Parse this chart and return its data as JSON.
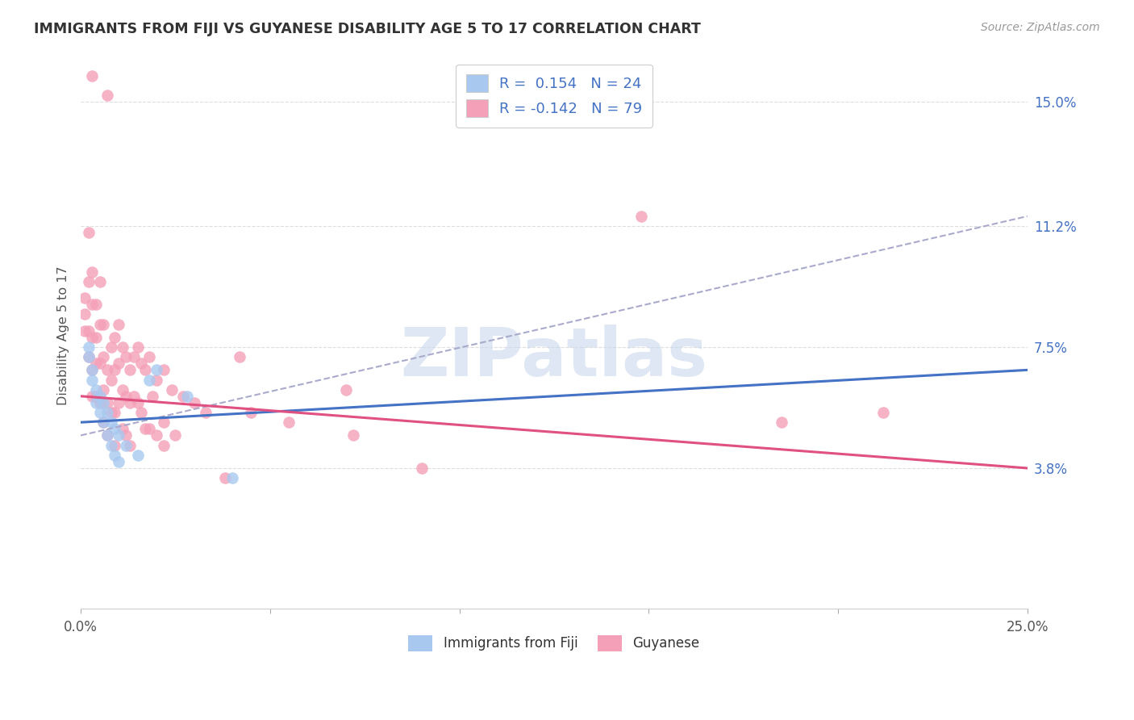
{
  "title": "IMMIGRANTS FROM FIJI VS GUYANESE DISABILITY AGE 5 TO 17 CORRELATION CHART",
  "source": "Source: ZipAtlas.com",
  "ylabel": "Disability Age 5 to 17",
  "xlim": [
    0.0,
    0.25
  ],
  "ylim": [
    -0.005,
    0.162
  ],
  "x_tick_positions": [
    0.0,
    0.05,
    0.1,
    0.15,
    0.2,
    0.25
  ],
  "x_tick_labels": [
    "0.0%",
    "",
    "",
    "",
    "",
    "25.0%"
  ],
  "y_ticks_right": [
    0.038,
    0.075,
    0.112,
    0.15
  ],
  "y_tick_labels_right": [
    "3.8%",
    "7.5%",
    "11.2%",
    "15.0%"
  ],
  "fiji_R": 0.154,
  "fiji_N": 24,
  "guyanese_R": -0.142,
  "guyanese_N": 79,
  "fiji_color": "#A8C8F0",
  "guyanese_color": "#F4A0B8",
  "fiji_line_color": "#4472C4",
  "guyanese_line_color": "#E05080",
  "dashed_line_color": "#AAAACC",
  "watermark": "ZIPatlas",
  "watermark_color": "#C8D8EC",
  "background_color": "#FFFFFF",
  "fiji_points": [
    [
      0.002,
      0.075
    ],
    [
      0.002,
      0.072
    ],
    [
      0.003,
      0.068
    ],
    [
      0.003,
      0.065
    ],
    [
      0.004,
      0.062
    ],
    [
      0.004,
      0.058
    ],
    [
      0.005,
      0.06
    ],
    [
      0.005,
      0.055
    ],
    [
      0.006,
      0.058
    ],
    [
      0.006,
      0.052
    ],
    [
      0.007,
      0.055
    ],
    [
      0.007,
      0.048
    ],
    [
      0.008,
      0.052
    ],
    [
      0.008,
      0.045
    ],
    [
      0.009,
      0.05
    ],
    [
      0.009,
      0.042
    ],
    [
      0.01,
      0.048
    ],
    [
      0.01,
      0.04
    ],
    [
      0.012,
      0.045
    ],
    [
      0.015,
      0.042
    ],
    [
      0.018,
      0.065
    ],
    [
      0.02,
      0.068
    ],
    [
      0.028,
      0.06
    ],
    [
      0.04,
      0.035
    ]
  ],
  "guyanese_points": [
    [
      0.001,
      0.09
    ],
    [
      0.001,
      0.085
    ],
    [
      0.001,
      0.08
    ],
    [
      0.002,
      0.11
    ],
    [
      0.002,
      0.095
    ],
    [
      0.002,
      0.08
    ],
    [
      0.002,
      0.072
    ],
    [
      0.003,
      0.098
    ],
    [
      0.003,
      0.088
    ],
    [
      0.003,
      0.078
    ],
    [
      0.003,
      0.068
    ],
    [
      0.003,
      0.06
    ],
    [
      0.004,
      0.088
    ],
    [
      0.004,
      0.078
    ],
    [
      0.004,
      0.07
    ],
    [
      0.004,
      0.06
    ],
    [
      0.005,
      0.095
    ],
    [
      0.005,
      0.082
    ],
    [
      0.005,
      0.07
    ],
    [
      0.005,
      0.058
    ],
    [
      0.006,
      0.082
    ],
    [
      0.006,
      0.072
    ],
    [
      0.006,
      0.062
    ],
    [
      0.006,
      0.052
    ],
    [
      0.007,
      0.152
    ],
    [
      0.007,
      0.068
    ],
    [
      0.007,
      0.058
    ],
    [
      0.007,
      0.048
    ],
    [
      0.008,
      0.075
    ],
    [
      0.008,
      0.065
    ],
    [
      0.008,
      0.055
    ],
    [
      0.009,
      0.078
    ],
    [
      0.009,
      0.068
    ],
    [
      0.009,
      0.055
    ],
    [
      0.009,
      0.045
    ],
    [
      0.01,
      0.082
    ],
    [
      0.01,
      0.07
    ],
    [
      0.01,
      0.058
    ],
    [
      0.011,
      0.075
    ],
    [
      0.011,
      0.062
    ],
    [
      0.011,
      0.05
    ],
    [
      0.012,
      0.072
    ],
    [
      0.012,
      0.06
    ],
    [
      0.012,
      0.048
    ],
    [
      0.013,
      0.068
    ],
    [
      0.013,
      0.058
    ],
    [
      0.013,
      0.045
    ],
    [
      0.014,
      0.072
    ],
    [
      0.014,
      0.06
    ],
    [
      0.015,
      0.075
    ],
    [
      0.015,
      0.058
    ],
    [
      0.016,
      0.07
    ],
    [
      0.016,
      0.055
    ],
    [
      0.017,
      0.068
    ],
    [
      0.017,
      0.05
    ],
    [
      0.018,
      0.072
    ],
    [
      0.018,
      0.05
    ],
    [
      0.019,
      0.06
    ],
    [
      0.02,
      0.065
    ],
    [
      0.02,
      0.048
    ],
    [
      0.022,
      0.052
    ],
    [
      0.022,
      0.068
    ],
    [
      0.022,
      0.045
    ],
    [
      0.024,
      0.062
    ],
    [
      0.025,
      0.048
    ],
    [
      0.027,
      0.06
    ],
    [
      0.03,
      0.058
    ],
    [
      0.033,
      0.055
    ],
    [
      0.038,
      0.035
    ],
    [
      0.042,
      0.072
    ],
    [
      0.045,
      0.055
    ],
    [
      0.055,
      0.052
    ],
    [
      0.07,
      0.062
    ],
    [
      0.072,
      0.048
    ],
    [
      0.09,
      0.038
    ],
    [
      0.148,
      0.115
    ],
    [
      0.185,
      0.052
    ],
    [
      0.212,
      0.055
    ],
    [
      0.003,
      0.158
    ]
  ],
  "legend_fiji_label": "R =  0.154   N = 24",
  "legend_guy_label": "R = -0.142   N = 79",
  "bottom_legend_fiji": "Immigrants from Fiji",
  "bottom_legend_guy": "Guyanese"
}
